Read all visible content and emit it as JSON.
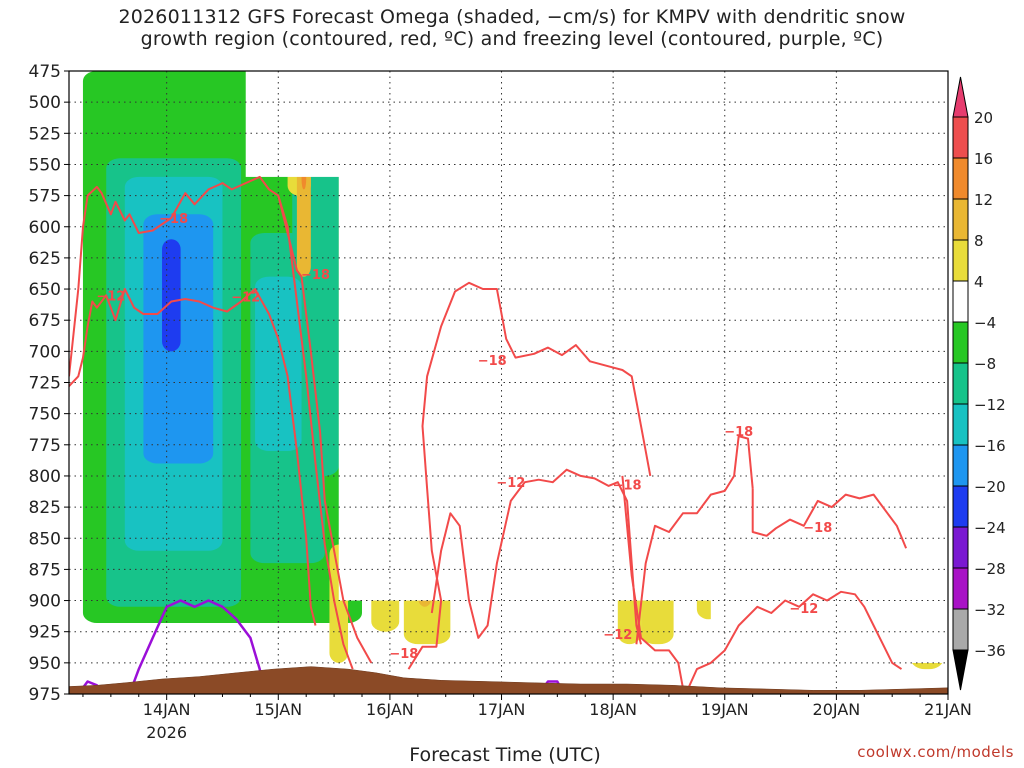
{
  "title_line1": "2026011312 GFS Forecast Omega (shaded, −cm/s) for KMPV with dendritic snow",
  "title_line2": "growth region (contoured, red, ºC) and freezing level (contoured, purple, ºC)",
  "credit": "coolwx.com/models",
  "chart_data": {
    "type": "heatmap",
    "title": "2026011312 GFS Forecast Omega (shaded, −cm/s) for KMPV with dendritic snow growth region (contoured, red, ºC) and freezing level (contoured, purple, ºC)",
    "xlabel": "Forecast Time (UTC)",
    "ylabel": "",
    "y_ticks": [
      "475",
      "500",
      "525",
      "550",
      "575",
      "600",
      "625",
      "650",
      "675",
      "700",
      "725",
      "750",
      "775",
      "800",
      "825",
      "850",
      "875",
      "900",
      "925",
      "950",
      "975"
    ],
    "x_ticks": [
      {
        "label": "14JAN",
        "sub": "2026",
        "hours": 21
      },
      {
        "label": "15JAN",
        "sub": "",
        "hours": 45
      },
      {
        "label": "16JAN",
        "sub": "",
        "hours": 69
      },
      {
        "label": "17JAN",
        "sub": "",
        "hours": 93
      },
      {
        "label": "18JAN",
        "sub": "",
        "hours": 117
      },
      {
        "label": "19JAN",
        "sub": "",
        "hours": 141
      },
      {
        "label": "20JAN",
        "sub": "",
        "hours": 165
      },
      {
        "label": "21JAN",
        "sub": "",
        "hours": 189
      }
    ],
    "x_range_hours": [
      0,
      189
    ],
    "y_range_hpa": [
      475,
      975
    ],
    "grid": true,
    "colorbar": {
      "ticks": [
        "20",
        "16",
        "12",
        "8",
        "4",
        "−4",
        "−8",
        "−12",
        "−16",
        "−20",
        "−24",
        "−28",
        "−32",
        "−36"
      ],
      "colors": [
        "#e63c6e",
        "#ee4e4e",
        "#f08a2c",
        "#e9b733",
        "#e8dc3a",
        "#ffffff",
        "#27c724",
        "#17c38a",
        "#18c2c2",
        "#1e96f0",
        "#1e3cf0",
        "#7a19d2",
        "#a812c6",
        "#a9a9a9",
        "#000000"
      ]
    },
    "contour_labels": [
      {
        "text": "−18",
        "h": 22.5,
        "p": 593
      },
      {
        "text": "−12",
        "h": 9,
        "p": 655
      },
      {
        "text": "−12",
        "h": 38,
        "p": 656
      },
      {
        "text": "−18",
        "h": 53,
        "p": 638
      },
      {
        "text": "−18",
        "h": 91,
        "p": 707
      },
      {
        "text": "−12",
        "h": 95,
        "p": 805
      },
      {
        "text": "−18",
        "h": 120,
        "p": 807
      },
      {
        "text": "−18",
        "h": 72,
        "p": 942
      },
      {
        "text": "−12",
        "h": 118,
        "p": 927
      },
      {
        "text": "−18",
        "h": 144,
        "p": 764
      },
      {
        "text": "−18",
        "h": 161,
        "p": 841
      },
      {
        "text": "−12",
        "h": 158,
        "p": 906
      }
    ]
  }
}
